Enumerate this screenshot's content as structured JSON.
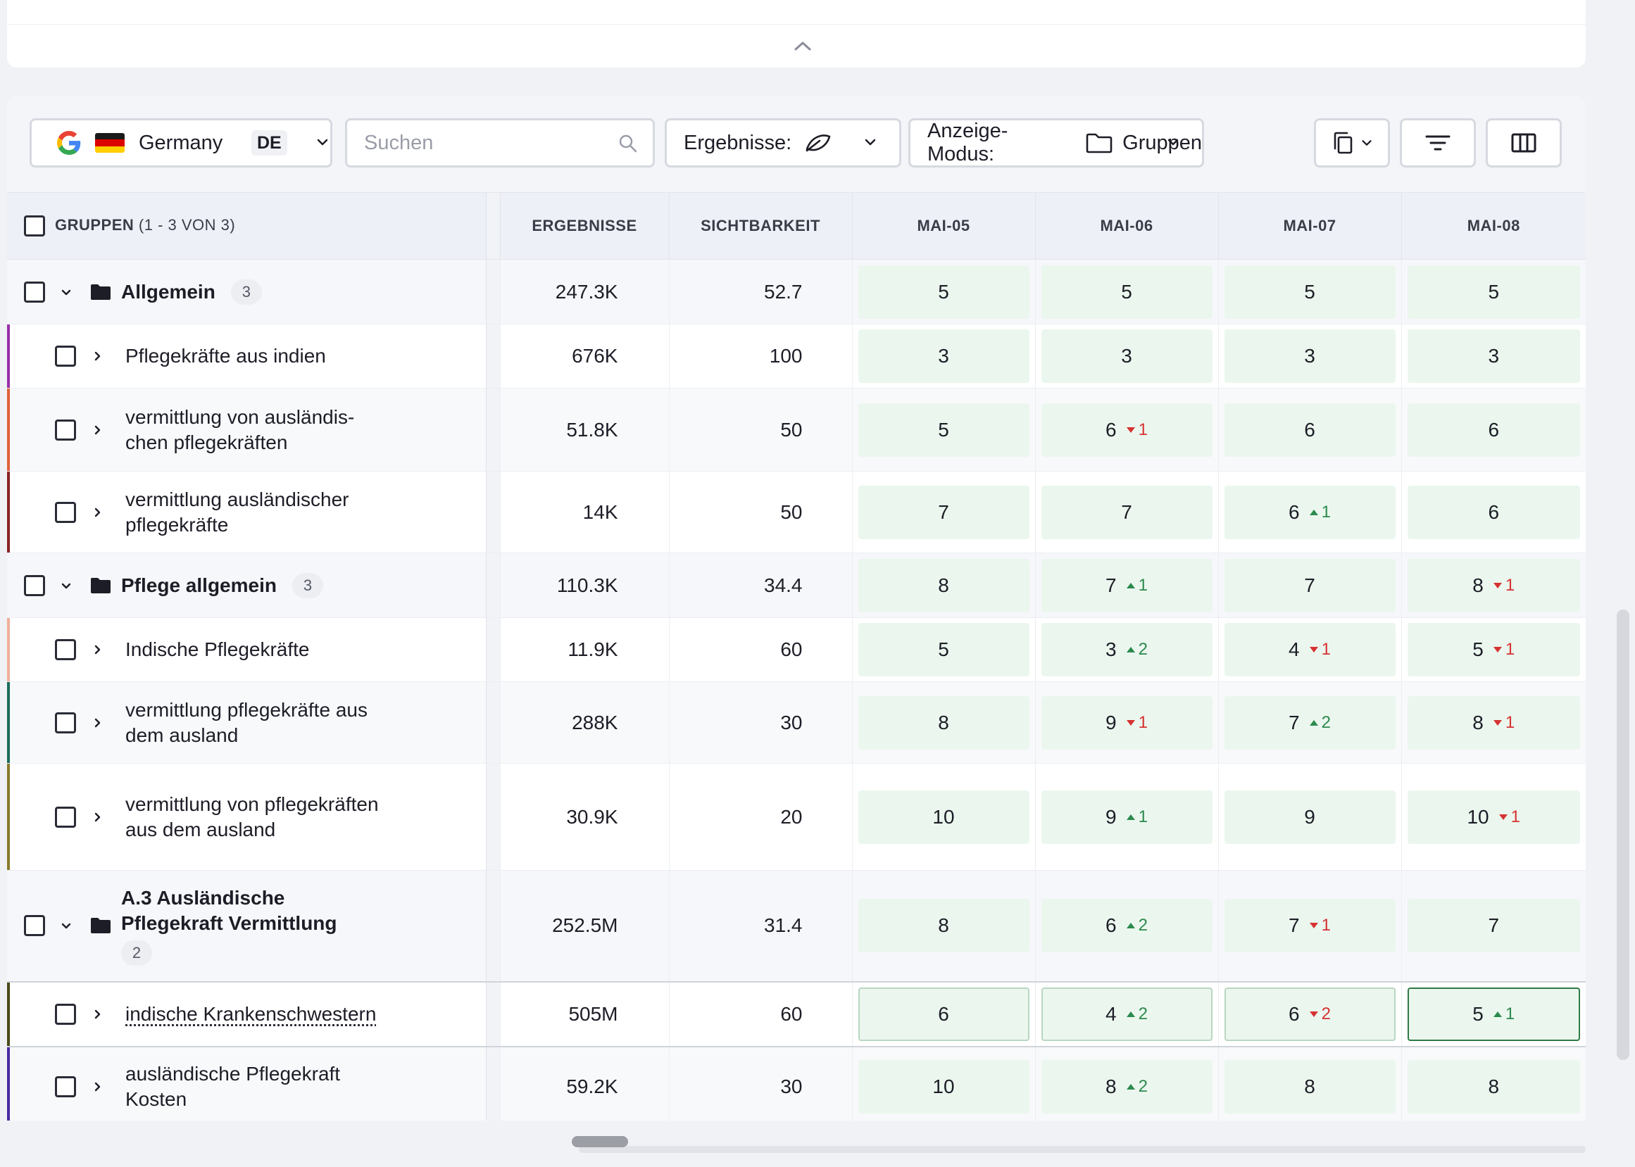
{
  "colors": {
    "cell_bg": "#ebf7ee",
    "up": "#2c8a4e",
    "down": "#d63232",
    "header_bg": "#eef0f8"
  },
  "toolbar": {
    "search_engine_icon": "google-icon",
    "country": "Germany",
    "country_code": "DE",
    "search_placeholder": "Suchen",
    "results_label": "Ergebnisse:",
    "results_icon": "leaf-icon",
    "mode_label": "Anzeige-Modus:",
    "mode_value": "Gruppen",
    "mode_icon": "folder-icon",
    "buttons": [
      "copy-icon",
      "filter-icon",
      "columns-icon"
    ]
  },
  "table": {
    "header": {
      "groups_label": "GRUPPEN",
      "groups_count": "(1 - 3 VON 3)",
      "results": "ERGEBNISSE",
      "visibility": "SICHTBARKEIT",
      "dates": [
        "MAI-05",
        "MAI-06",
        "MAI-07",
        "MAI-08"
      ]
    },
    "rows": [
      {
        "type": "group",
        "label": "Allgemein",
        "count": "3",
        "results": "247.3K",
        "visibility": "52.7",
        "positions": [
          {
            "v": "5"
          },
          {
            "v": "5"
          },
          {
            "v": "5"
          },
          {
            "v": "5"
          }
        ]
      },
      {
        "type": "child",
        "bar": "#9b2fa8",
        "label": "Pflegekräfte aus indien",
        "results": "676K",
        "visibility": "100",
        "positions": [
          {
            "v": "3"
          },
          {
            "v": "3"
          },
          {
            "v": "3"
          },
          {
            "v": "3"
          }
        ]
      },
      {
        "type": "child",
        "bar": "#e0603a",
        "label": "vermittlung von ausländis-chen pflegekräften",
        "results": "51.8K",
        "visibility": "50",
        "positions": [
          {
            "v": "5"
          },
          {
            "v": "6",
            "d": "1",
            "dir": "down"
          },
          {
            "v": "6"
          },
          {
            "v": "6"
          }
        ]
      },
      {
        "type": "child",
        "bar": "#8a2424",
        "label": "vermittlung ausländischer pflegekräfte",
        "results": "14K",
        "visibility": "50",
        "positions": [
          {
            "v": "7"
          },
          {
            "v": "7"
          },
          {
            "v": "6",
            "d": "1",
            "dir": "up"
          },
          {
            "v": "6"
          }
        ]
      },
      {
        "type": "group",
        "label": "Pflege allgemein",
        "count": "3",
        "results": "110.3K",
        "visibility": "34.4",
        "positions": [
          {
            "v": "8"
          },
          {
            "v": "7",
            "d": "1",
            "dir": "up"
          },
          {
            "v": "7"
          },
          {
            "v": "8",
            "d": "1",
            "dir": "down"
          }
        ]
      },
      {
        "type": "child",
        "bar": "#f0b09c",
        "label": "Indische Pflegekräfte",
        "results": "11.9K",
        "visibility": "60",
        "positions": [
          {
            "v": "5"
          },
          {
            "v": "3",
            "d": "2",
            "dir": "up"
          },
          {
            "v": "4",
            "d": "1",
            "dir": "down"
          },
          {
            "v": "5",
            "d": "1",
            "dir": "down"
          }
        ]
      },
      {
        "type": "child",
        "bar": "#1c6b5a",
        "label": "vermittlung pflegekräfte aus dem ausland",
        "results": "288K",
        "visibility": "30",
        "positions": [
          {
            "v": "8"
          },
          {
            "v": "9",
            "d": "1",
            "dir": "down"
          },
          {
            "v": "7",
            "d": "2",
            "dir": "up"
          },
          {
            "v": "8",
            "d": "1",
            "dir": "down"
          }
        ]
      },
      {
        "type": "child",
        "bar": "#8a7a2c",
        "label": "vermittlung von pflegekräften aus dem ausland",
        "results": "30.9K",
        "visibility": "20",
        "positions": [
          {
            "v": "10"
          },
          {
            "v": "9",
            "d": "1",
            "dir": "up"
          },
          {
            "v": "9"
          },
          {
            "v": "10",
            "d": "1",
            "dir": "down"
          }
        ]
      },
      {
        "type": "group",
        "label": "A.3 Ausländische Pflegekraft Vermittlung",
        "count": "2",
        "results": "252.5M",
        "visibility": "31.4",
        "positions": [
          {
            "v": "8"
          },
          {
            "v": "6",
            "d": "2",
            "dir": "up"
          },
          {
            "v": "7",
            "d": "1",
            "dir": "down"
          },
          {
            "v": "7"
          }
        ]
      },
      {
        "type": "child",
        "bar": "#4a4a18",
        "label": "indische Krankenschwestern",
        "results": "505M",
        "visibility": "60",
        "selected": true,
        "underline": true,
        "positions": [
          {
            "v": "6"
          },
          {
            "v": "4",
            "d": "2",
            "dir": "up"
          },
          {
            "v": "6",
            "d": "2",
            "dir": "down"
          },
          {
            "v": "5",
            "d": "1",
            "dir": "up",
            "active": true
          }
        ]
      },
      {
        "type": "child",
        "bar": "#4a2aa0",
        "label": "ausländische Pflegekraft Kosten",
        "results": "59.2K",
        "visibility": "30",
        "positions": [
          {
            "v": "10"
          },
          {
            "v": "8",
            "d": "2",
            "dir": "up"
          },
          {
            "v": "8"
          },
          {
            "v": "8"
          }
        ]
      }
    ]
  }
}
